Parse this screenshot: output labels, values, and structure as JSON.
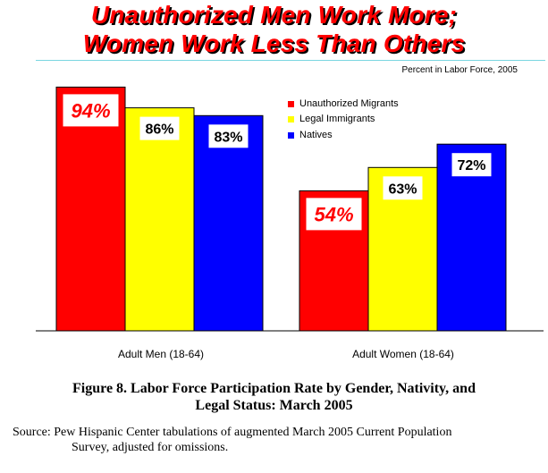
{
  "title_line1": "Unauthorized Men Work More;",
  "title_line2": "Women Work Less Than Others",
  "subtitle": "Percent in Labor Force, 2005",
  "colors": {
    "unauthorized": "#ff0000",
    "legal": "#ffff00",
    "natives": "#0000ff",
    "title": "#ff0000",
    "rule": "#7ad6e0"
  },
  "chart_data": {
    "type": "bar",
    "categories": [
      "Adult Men (18-64)",
      "Adult Women (18-64)"
    ],
    "series": [
      {
        "name": "Unauthorized Migrants",
        "values": [
          94,
          54
        ],
        "labels": [
          "94%",
          "54%"
        ]
      },
      {
        "name": "Legal Immigrants",
        "values": [
          86,
          63
        ],
        "labels": [
          "86%",
          "63%"
        ]
      },
      {
        "name": "Natives",
        "values": [
          83,
          72
        ],
        "labels": [
          "83%",
          "72%"
        ]
      }
    ],
    "ylim": [
      0,
      100
    ],
    "grid": false,
    "legend_position": "top-center"
  },
  "caption": {
    "line1": "Figure 8.  Labor Force Participation Rate by Gender, Nativity, and",
    "line2": "Legal Status:  March 2005"
  },
  "source": {
    "line1": "Source:  Pew Hispanic Center tabulations of augmented March 2005 Current Population",
    "line2": "Survey, adjusted for omissions."
  }
}
